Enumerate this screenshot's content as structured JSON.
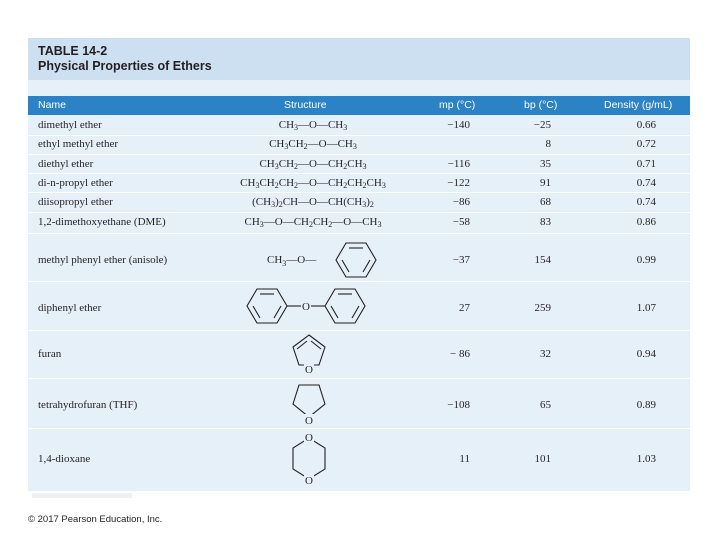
{
  "table": {
    "label": "TABLE 14-2",
    "caption": "Physical Properties of Ethers",
    "headers": {
      "name": "Name",
      "structure": "Structure",
      "mp": "mp (°C)",
      "bp": "bp (°C)",
      "density": "Density (g/mL)"
    },
    "rows": [
      {
        "name": "dimethyl ether",
        "mp": "−140",
        "bp": "−25",
        "density": "0.66"
      },
      {
        "name": "ethyl methyl ether",
        "mp": "",
        "bp": "8",
        "density": "0.72"
      },
      {
        "name": "diethyl ether",
        "mp": "−116",
        "bp": "35",
        "density": "0.71"
      },
      {
        "name": "di-n-propyl ether",
        "mp": "−122",
        "bp": "91",
        "density": "0.74"
      },
      {
        "name": "diisopropyl ether",
        "mp": "−86",
        "bp": "68",
        "density": "0.74"
      },
      {
        "name": "1,2-dimethoxyethane (DME)",
        "mp": "−58",
        "bp": "83",
        "density": "0.86"
      },
      {
        "name": "methyl phenyl ether (anisole)",
        "mp": "−37",
        "bp": "154",
        "density": "0.99"
      },
      {
        "name": "diphenyl ether",
        "mp": "27",
        "bp": "259",
        "density": "1.07"
      },
      {
        "name": "furan",
        "mp": "− 86",
        "bp": "32",
        "density": "0.94"
      },
      {
        "name": "tetrahydrofuran (THF)",
        "mp": "−108",
        "bp": "65",
        "density": "0.89"
      },
      {
        "name": "1,4-dioxane",
        "mp": "11",
        "bp": "101",
        "density": "1.03"
      }
    ],
    "structure_labels": {
      "ch3_anisole": "CH",
      "o": "O"
    }
  },
  "footer": {
    "copyright": "© 2017 Pearson Education, Inc."
  }
}
